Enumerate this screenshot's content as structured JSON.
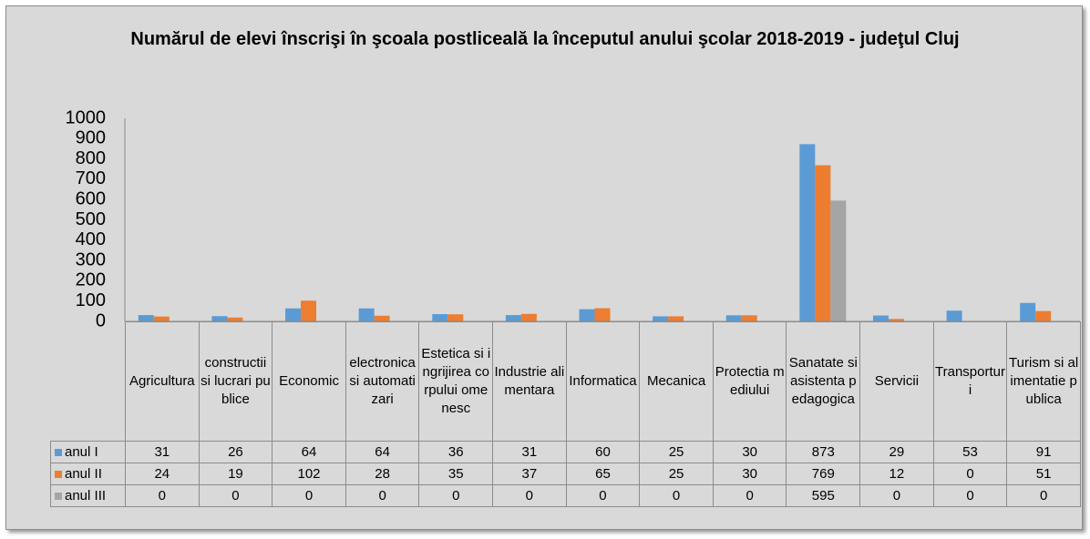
{
  "chart_data": {
    "type": "bar",
    "title": "Numărul de elevi înscrişi în şcoala postliceală la începutul anului şcolar 2018-2019 - judeţul Cluj",
    "categories": [
      "Agricultura",
      "constructii si lucrari publice",
      "Economic",
      "electronica si automatizari",
      "Estetica si ingrijirea corpului omenesc",
      "Industrie alimentara",
      "Informatica",
      "Mecanica",
      "Protectia mediului",
      "Sanatate si asistenta pedagogica",
      "Servicii",
      "Transporturi",
      "Turism si alimentatie publica"
    ],
    "series": [
      {
        "name": "anul I",
        "color": "#5b9bd5",
        "values": [
          31,
          26,
          64,
          64,
          36,
          31,
          60,
          25,
          30,
          873,
          29,
          53,
          91
        ]
      },
      {
        "name": "anul II",
        "color": "#ed7d31",
        "values": [
          24,
          19,
          102,
          28,
          35,
          37,
          65,
          25,
          30,
          769,
          12,
          0,
          51
        ]
      },
      {
        "name": "anul III",
        "color": "#a5a5a5",
        "values": [
          0,
          0,
          0,
          0,
          0,
          0,
          0,
          0,
          0,
          595,
          0,
          0,
          0
        ]
      }
    ],
    "ylim": [
      0,
      1000
    ],
    "yticks": [
      0,
      100,
      200,
      300,
      400,
      500,
      600,
      700,
      800,
      900,
      1000
    ],
    "grid": false
  }
}
